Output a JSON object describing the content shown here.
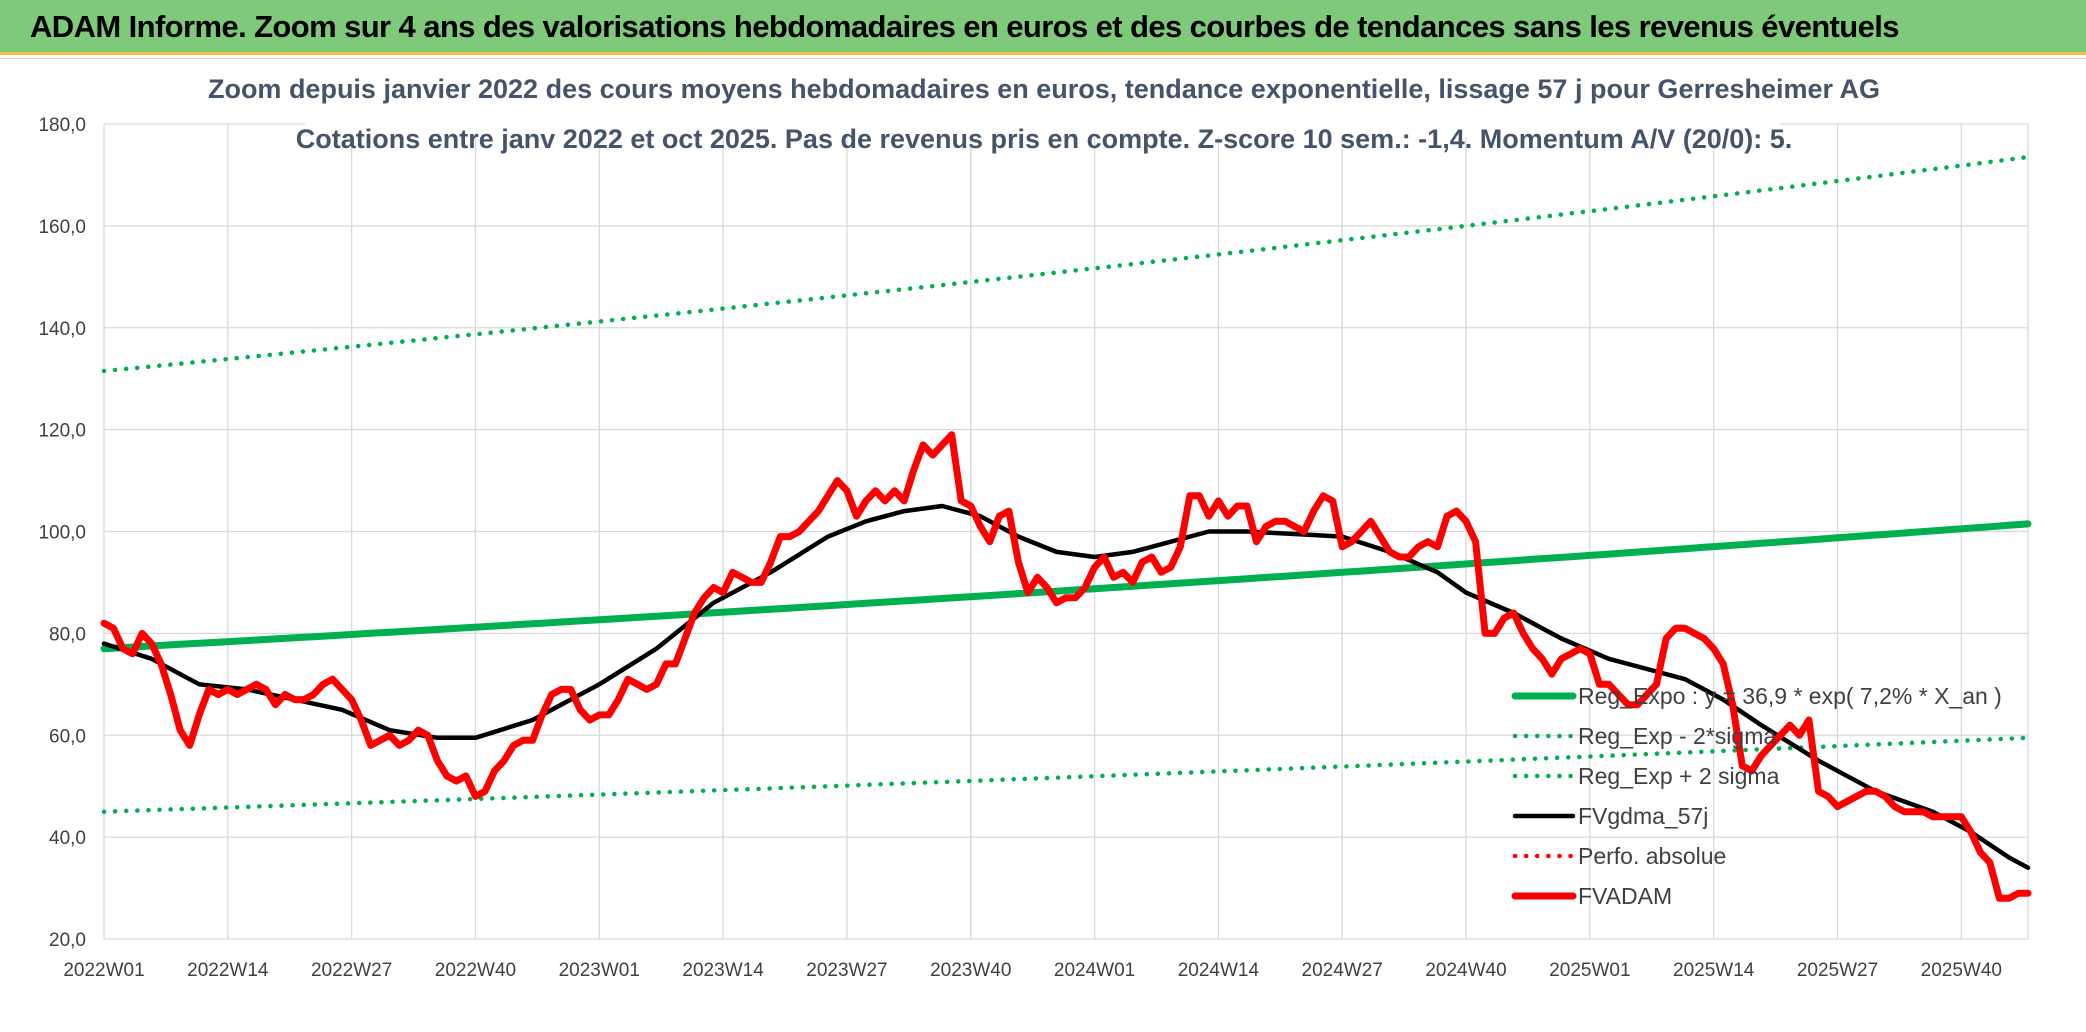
{
  "banner": {
    "title": "ADAM Informe. Zoom sur 4 ans des valorisations hebdomadaires en euros et des courbes de tendances sans les revenus éventuels"
  },
  "chart_data": {
    "type": "line",
    "title": "Zoom depuis janvier 2022  des cours moyens hebdomadaires en euros, tendance exponentielle, lissage 57 j pour Gerresheimer AG",
    "subtitle": "Cotations entre janv 2022 et oct 2025. Pas de revenus pris en compte. Z-score 10 sem.: -1,4. Momentum A/V (20/0): 5.",
    "xlabel": "",
    "ylabel": "",
    "ylim": [
      20,
      180
    ],
    "y_ticks": [
      "20,0",
      "40,0",
      "60,0",
      "80,0",
      "100,0",
      "120,0",
      "140,0",
      "160,0",
      "180,0"
    ],
    "x_ticks": [
      "2022W01",
      "2022W14",
      "2022W27",
      "2022W40",
      "2023W01",
      "2023W14",
      "2023W27",
      "2023W40",
      "2024W01",
      "2024W14",
      "2024W27",
      "2024W40",
      "2025W01",
      "2025W14",
      "2025W27",
      "2025W40"
    ],
    "x_tick_index": [
      0,
      13,
      26,
      39,
      52,
      65,
      78,
      91,
      104,
      117,
      130,
      143,
      156,
      169,
      182,
      195
    ],
    "n_weeks": 202,
    "grid": true,
    "legend_position": "bottom-right",
    "colors": {
      "trend": "#00b050",
      "fvgdma": "#000000",
      "fvadam": "#ff0000",
      "grid": "#d9d9d9",
      "title": "#44546a",
      "banner": "#7ec97a"
    },
    "series": [
      {
        "name": "Reg_Expo : y = 36,9 * exp( 7,2% *  X_an )",
        "style": "solid-thick",
        "color": "#00b050",
        "start": 77,
        "end": 101.5
      },
      {
        "name": "Reg_Exp - 2*sigma",
        "style": "dotted",
        "color": "#00b050",
        "start": 45,
        "end": 59.5
      },
      {
        "name": "Reg_Exp + 2 sigma",
        "style": "dotted",
        "color": "#00b050",
        "start": 131.5,
        "end": 173.5
      },
      {
        "name": "FVgdma_57j",
        "style": "solid",
        "color": "#000000",
        "points": [
          [
            0,
            78
          ],
          [
            5,
            75
          ],
          [
            10,
            70
          ],
          [
            15,
            69
          ],
          [
            20,
            67
          ],
          [
            25,
            65
          ],
          [
            30,
            61
          ],
          [
            35,
            59.5
          ],
          [
            39,
            59.5
          ],
          [
            45,
            63
          ],
          [
            52,
            70
          ],
          [
            58,
            77
          ],
          [
            64,
            86
          ],
          [
            70,
            92
          ],
          [
            76,
            99
          ],
          [
            80,
            102
          ],
          [
            84,
            104
          ],
          [
            88,
            105
          ],
          [
            92,
            103
          ],
          [
            96,
            99
          ],
          [
            100,
            96
          ],
          [
            104,
            95
          ],
          [
            108,
            96
          ],
          [
            112,
            98
          ],
          [
            116,
            100
          ],
          [
            120,
            100
          ],
          [
            125,
            99.5
          ],
          [
            130,
            99
          ],
          [
            135,
            96
          ],
          [
            140,
            92
          ],
          [
            143,
            88
          ],
          [
            148,
            84
          ],
          [
            153,
            79
          ],
          [
            158,
            75
          ],
          [
            162,
            73
          ],
          [
            166,
            71
          ],
          [
            170,
            67
          ],
          [
            174,
            62
          ],
          [
            180,
            55
          ],
          [
            186,
            49
          ],
          [
            192,
            45
          ],
          [
            196,
            41
          ],
          [
            200,
            36
          ],
          [
            202,
            34
          ]
        ]
      },
      {
        "name": "Perfo. absolue",
        "style": "dotted",
        "color": "#ff0000",
        "points": []
      },
      {
        "name": "FVADAM",
        "style": "solid-thick",
        "color": "#ff0000",
        "points": [
          [
            0,
            82
          ],
          [
            1,
            81
          ],
          [
            2,
            77
          ],
          [
            3,
            76
          ],
          [
            4,
            80
          ],
          [
            5,
            78
          ],
          [
            6,
            74
          ],
          [
            7,
            68
          ],
          [
            8,
            61
          ],
          [
            9,
            58
          ],
          [
            10,
            64
          ],
          [
            11,
            69
          ],
          [
            12,
            68
          ],
          [
            13,
            69
          ],
          [
            14,
            68
          ],
          [
            15,
            69
          ],
          [
            16,
            70
          ],
          [
            17,
            69
          ],
          [
            18,
            66
          ],
          [
            19,
            68
          ],
          [
            20,
            67
          ],
          [
            21,
            67
          ],
          [
            22,
            68
          ],
          [
            23,
            70
          ],
          [
            24,
            71
          ],
          [
            25,
            69
          ],
          [
            26,
            67
          ],
          [
            27,
            63
          ],
          [
            28,
            58
          ],
          [
            29,
            59
          ],
          [
            30,
            60
          ],
          [
            31,
            58
          ],
          [
            32,
            59
          ],
          [
            33,
            61
          ],
          [
            34,
            60
          ],
          [
            35,
            55
          ],
          [
            36,
            52
          ],
          [
            37,
            51
          ],
          [
            38,
            52
          ],
          [
            39,
            48
          ],
          [
            40,
            49
          ],
          [
            41,
            53
          ],
          [
            42,
            55
          ],
          [
            43,
            58
          ],
          [
            44,
            59
          ],
          [
            45,
            59
          ],
          [
            46,
            64
          ],
          [
            47,
            68
          ],
          [
            48,
            69
          ],
          [
            49,
            69
          ],
          [
            50,
            65
          ],
          [
            51,
            63
          ],
          [
            52,
            64
          ],
          [
            53,
            64
          ],
          [
            54,
            67
          ],
          [
            55,
            71
          ],
          [
            56,
            70
          ],
          [
            57,
            69
          ],
          [
            58,
            70
          ],
          [
            59,
            74
          ],
          [
            60,
            74
          ],
          [
            61,
            79
          ],
          [
            62,
            84
          ],
          [
            63,
            87
          ],
          [
            64,
            89
          ],
          [
            65,
            88
          ],
          [
            66,
            92
          ],
          [
            67,
            91
          ],
          [
            68,
            90
          ],
          [
            69,
            90
          ],
          [
            70,
            94
          ],
          [
            71,
            99
          ],
          [
            72,
            99
          ],
          [
            73,
            100
          ],
          [
            74,
            102
          ],
          [
            75,
            104
          ],
          [
            76,
            107
          ],
          [
            77,
            110
          ],
          [
            78,
            108
          ],
          [
            79,
            103
          ],
          [
            80,
            106
          ],
          [
            81,
            108
          ],
          [
            82,
            106
          ],
          [
            83,
            108
          ],
          [
            84,
            106
          ],
          [
            85,
            112
          ],
          [
            86,
            117
          ],
          [
            87,
            115
          ],
          [
            88,
            117
          ],
          [
            89,
            119
          ],
          [
            90,
            106
          ],
          [
            91,
            105
          ],
          [
            92,
            101
          ],
          [
            93,
            98
          ],
          [
            94,
            103
          ],
          [
            95,
            104
          ],
          [
            96,
            94
          ],
          [
            97,
            88
          ],
          [
            98,
            91
          ],
          [
            99,
            89
          ],
          [
            100,
            86
          ],
          [
            101,
            87
          ],
          [
            102,
            87
          ],
          [
            103,
            89
          ],
          [
            104,
            93
          ],
          [
            105,
            95
          ],
          [
            106,
            91
          ],
          [
            107,
            92
          ],
          [
            108,
            90
          ],
          [
            109,
            94
          ],
          [
            110,
            95
          ],
          [
            111,
            92
          ],
          [
            112,
            93
          ],
          [
            113,
            97
          ],
          [
            114,
            107
          ],
          [
            115,
            107
          ],
          [
            116,
            103
          ],
          [
            117,
            106
          ],
          [
            118,
            103
          ],
          [
            119,
            105
          ],
          [
            120,
            105
          ],
          [
            121,
            98
          ],
          [
            122,
            101
          ],
          [
            123,
            102
          ],
          [
            124,
            102
          ],
          [
            125,
            101
          ],
          [
            126,
            100
          ],
          [
            127,
            104
          ],
          [
            128,
            107
          ],
          [
            129,
            106
          ],
          [
            130,
            97
          ],
          [
            131,
            98
          ],
          [
            132,
            100
          ],
          [
            133,
            102
          ],
          [
            134,
            99
          ],
          [
            135,
            96
          ],
          [
            136,
            95
          ],
          [
            137,
            95
          ],
          [
            138,
            97
          ],
          [
            139,
            98
          ],
          [
            140,
            97
          ],
          [
            141,
            103
          ],
          [
            142,
            104
          ],
          [
            143,
            102
          ],
          [
            144,
            98
          ],
          [
            145,
            80
          ],
          [
            146,
            80
          ],
          [
            147,
            83
          ],
          [
            148,
            84
          ],
          [
            149,
            80
          ],
          [
            150,
            77
          ],
          [
            151,
            75
          ],
          [
            152,
            72
          ],
          [
            153,
            75
          ],
          [
            154,
            76
          ],
          [
            155,
            77
          ],
          [
            156,
            76
          ],
          [
            157,
            70
          ],
          [
            158,
            70
          ],
          [
            159,
            68
          ],
          [
            160,
            66
          ],
          [
            161,
            66
          ],
          [
            162,
            68
          ],
          [
            163,
            70
          ],
          [
            164,
            79
          ],
          [
            165,
            81
          ],
          [
            166,
            81
          ],
          [
            167,
            80
          ],
          [
            168,
            79
          ],
          [
            169,
            77
          ],
          [
            170,
            74
          ],
          [
            171,
            66
          ],
          [
            172,
            54
          ],
          [
            173,
            53
          ],
          [
            174,
            56
          ],
          [
            175,
            58
          ],
          [
            176,
            60
          ],
          [
            177,
            62
          ],
          [
            178,
            60
          ],
          [
            179,
            63
          ],
          [
            180,
            49
          ],
          [
            181,
            48
          ],
          [
            182,
            46
          ],
          [
            183,
            47
          ],
          [
            184,
            48
          ],
          [
            185,
            49
          ],
          [
            186,
            49
          ],
          [
            187,
            48
          ],
          [
            188,
            46
          ],
          [
            189,
            45
          ],
          [
            190,
            45
          ],
          [
            191,
            45
          ],
          [
            192,
            44
          ],
          [
            193,
            44
          ],
          [
            194,
            44
          ],
          [
            195,
            44
          ],
          [
            196,
            41
          ],
          [
            197,
            37
          ],
          [
            198,
            35
          ],
          [
            199,
            28
          ],
          [
            200,
            28
          ],
          [
            201,
            29
          ],
          [
            202,
            29
          ]
        ]
      }
    ]
  }
}
